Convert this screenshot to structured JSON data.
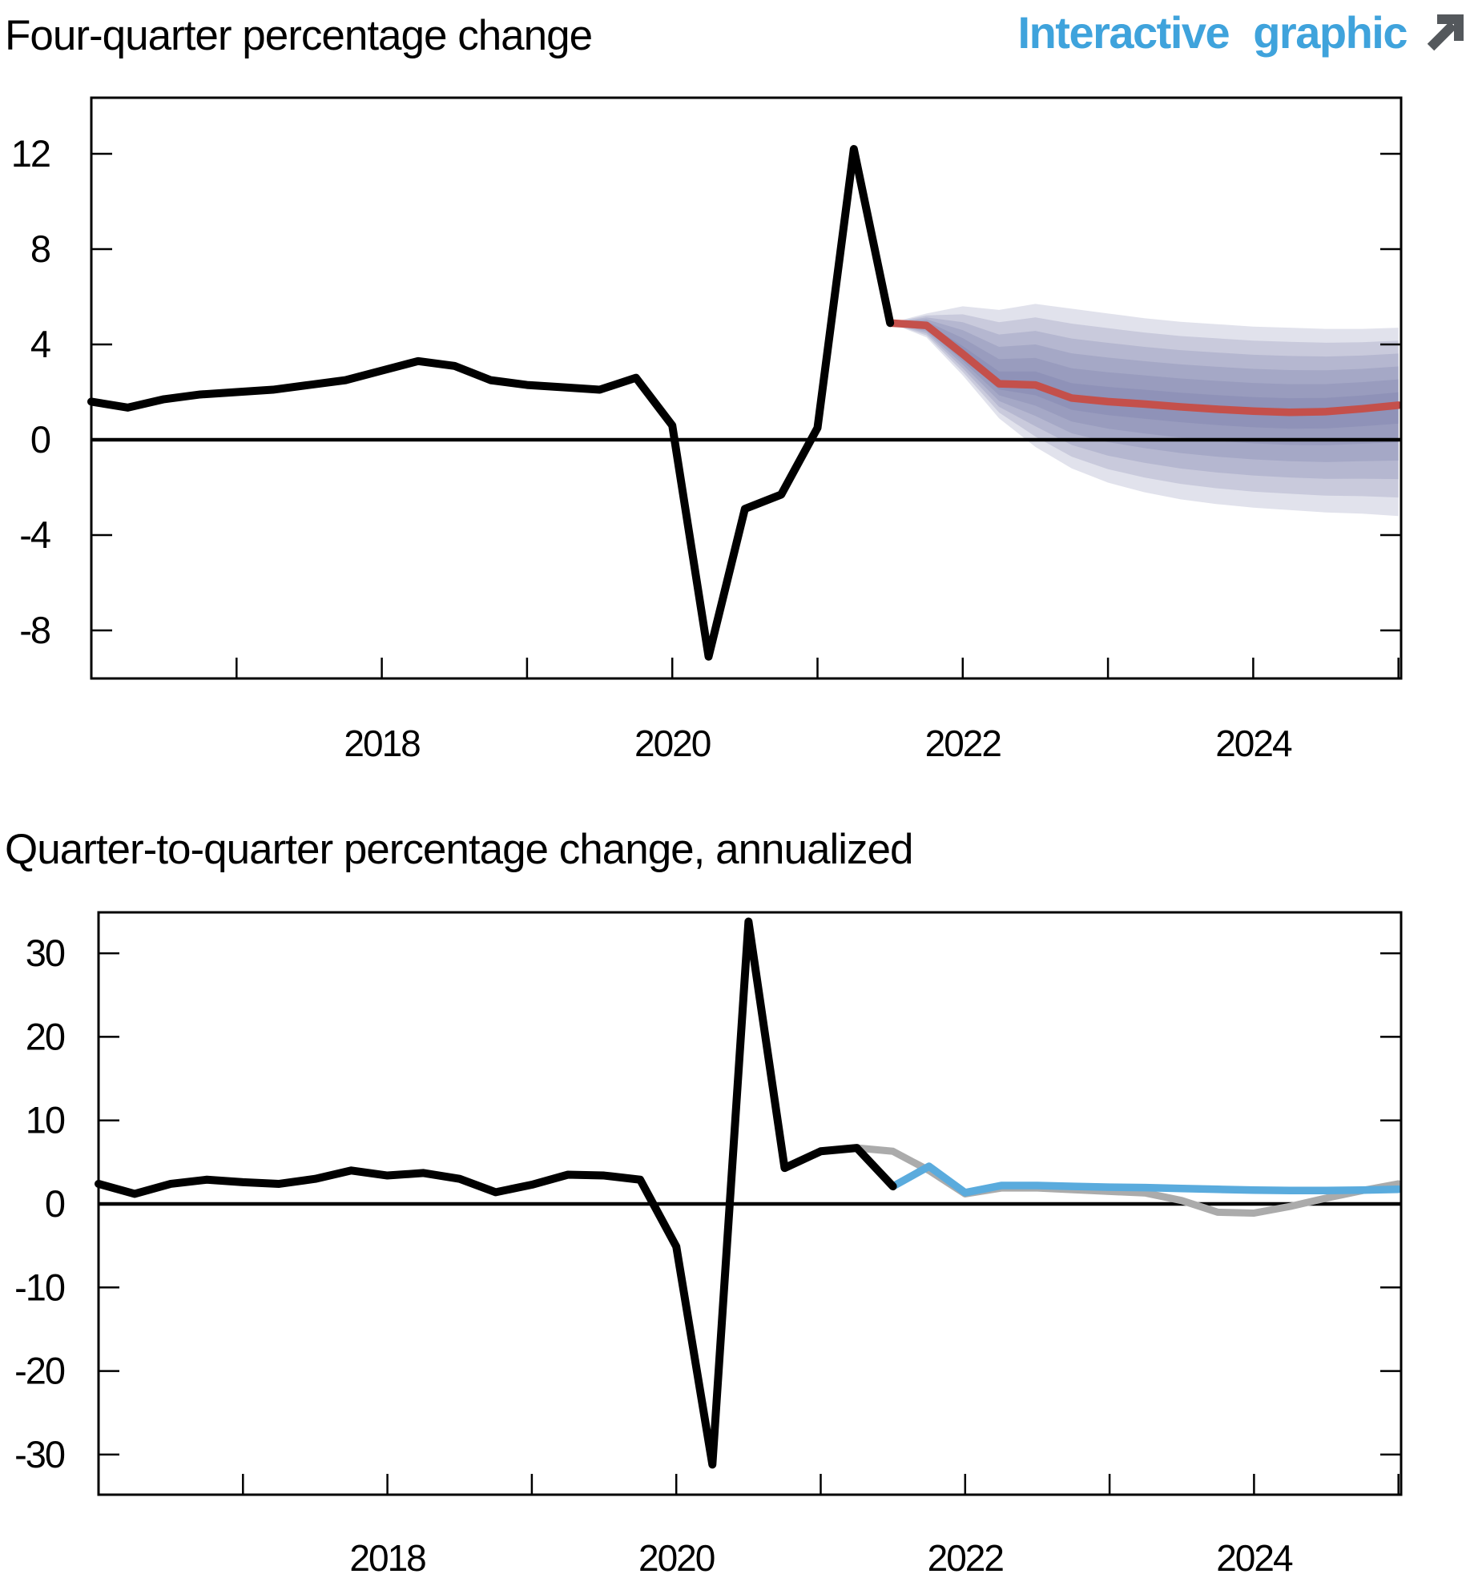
{
  "header": {
    "interactive": {
      "label": "Interactive graphic",
      "color": "#3FA3DC",
      "icon": "arrow-up-right-icon",
      "icon_color": "#54585C"
    }
  },
  "chart_data": [
    {
      "type": "line",
      "panel": "top",
      "title": "Four-quarter percentage change",
      "yticks": [
        12,
        8,
        4,
        0,
        -4,
        -8
      ],
      "ylim": [
        -10,
        14.3
      ],
      "xlim": [
        2016,
        2025.02
      ],
      "x_year_ticks": [
        2017,
        2018,
        2019,
        2020,
        2021,
        2022,
        2023,
        2024,
        2025
      ],
      "x_year_labels": [
        2018,
        2020,
        2022,
        2024
      ],
      "grid": false,
      "zero_line": true,
      "history": {
        "color": "#000000",
        "x": [
          2016.0,
          2016.25,
          2016.5,
          2016.75,
          2017.0,
          2017.25,
          2017.5,
          2017.75,
          2018.0,
          2018.25,
          2018.5,
          2018.75,
          2019.0,
          2019.25,
          2019.5,
          2019.75,
          2020.0,
          2020.25,
          2020.5,
          2020.75,
          2021.0,
          2021.25,
          2021.5
        ],
        "values": [
          1.6,
          1.35,
          1.7,
          1.9,
          2.0,
          2.1,
          2.3,
          2.5,
          2.9,
          3.3,
          3.1,
          2.5,
          2.3,
          2.2,
          2.1,
          2.6,
          0.6,
          -9.1,
          -2.9,
          -2.3,
          0.5,
          12.2,
          4.9
        ]
      },
      "forecast": {
        "color": "#C4504B",
        "x": [
          2021.5,
          2021.75,
          2022.0,
          2022.25,
          2022.5,
          2022.75,
          2023.0,
          2023.25,
          2023.5,
          2023.75,
          2024.0,
          2024.25,
          2024.5,
          2024.75,
          2025.0
        ],
        "values": [
          4.9,
          4.8,
          3.6,
          2.35,
          2.3,
          1.75,
          1.6,
          1.5,
          1.38,
          1.28,
          1.2,
          1.15,
          1.18,
          1.3,
          1.45
        ]
      },
      "band": {
        "color_rgb": "104,112,158",
        "levels": 6,
        "upper90": [
          4.9,
          5.3,
          5.6,
          5.45,
          5.7,
          5.5,
          5.3,
          5.1,
          4.95,
          4.85,
          4.75,
          4.7,
          4.65,
          4.65,
          4.7
        ],
        "lower90": [
          4.9,
          4.3,
          2.7,
          0.9,
          -0.3,
          -1.2,
          -1.8,
          -2.2,
          -2.5,
          -2.7,
          -2.85,
          -2.95,
          -3.05,
          -3.1,
          -3.2
        ]
      }
    },
    {
      "type": "line",
      "panel": "bottom",
      "title": "Quarter-to-quarter percentage change, annualized",
      "yticks": [
        30,
        20,
        10,
        0,
        -10,
        -20,
        -30
      ],
      "ylim": [
        -34.7,
        34.8
      ],
      "xlim": [
        2016,
        2025.02
      ],
      "x_year_ticks": [
        2017,
        2018,
        2019,
        2020,
        2021,
        2022,
        2023,
        2024,
        2025
      ],
      "x_year_labels": [
        2018,
        2020,
        2022,
        2024
      ],
      "grid": false,
      "zero_line": true,
      "history": {
        "color": "#000000",
        "x": [
          2016.0,
          2016.25,
          2016.5,
          2016.75,
          2017.0,
          2017.25,
          2017.5,
          2017.75,
          2018.0,
          2018.25,
          2018.5,
          2018.75,
          2019.0,
          2019.25,
          2019.5,
          2019.75,
          2020.0,
          2020.25,
          2020.5,
          2020.75,
          2021.0,
          2021.25,
          2021.5
        ],
        "values": [
          2.4,
          1.2,
          2.4,
          2.9,
          2.6,
          2.4,
          3.0,
          4.0,
          3.4,
          3.7,
          3.0,
          1.4,
          2.3,
          3.5,
          3.4,
          2.9,
          -5.1,
          -31.2,
          33.8,
          4.3,
          6.3,
          6.7,
          2.1
        ]
      },
      "forecast_current": {
        "color": "#5AABDD",
        "x": [
          2021.5,
          2021.75,
          2022.0,
          2022.25,
          2022.5,
          2022.75,
          2023.0,
          2023.25,
          2023.5,
          2023.75,
          2024.0,
          2024.25,
          2024.5,
          2024.75,
          2025.0
        ],
        "values": [
          2.1,
          4.5,
          1.35,
          2.2,
          2.2,
          2.1,
          2.0,
          1.95,
          1.85,
          1.75,
          1.65,
          1.6,
          1.6,
          1.65,
          1.75
        ]
      },
      "forecast_previous": {
        "color": "#ABABAB",
        "x": [
          2021.25,
          2021.5,
          2021.75,
          2022.0,
          2022.25,
          2022.5,
          2022.75,
          2023.0,
          2023.25,
          2023.5,
          2023.75,
          2024.0,
          2024.25,
          2024.5,
          2024.75,
          2025.0
        ],
        "values": [
          6.7,
          6.3,
          4.0,
          1.2,
          1.9,
          1.9,
          1.7,
          1.5,
          1.3,
          0.4,
          -1.0,
          -1.1,
          -0.3,
          0.7,
          1.6,
          2.4
        ]
      }
    }
  ]
}
